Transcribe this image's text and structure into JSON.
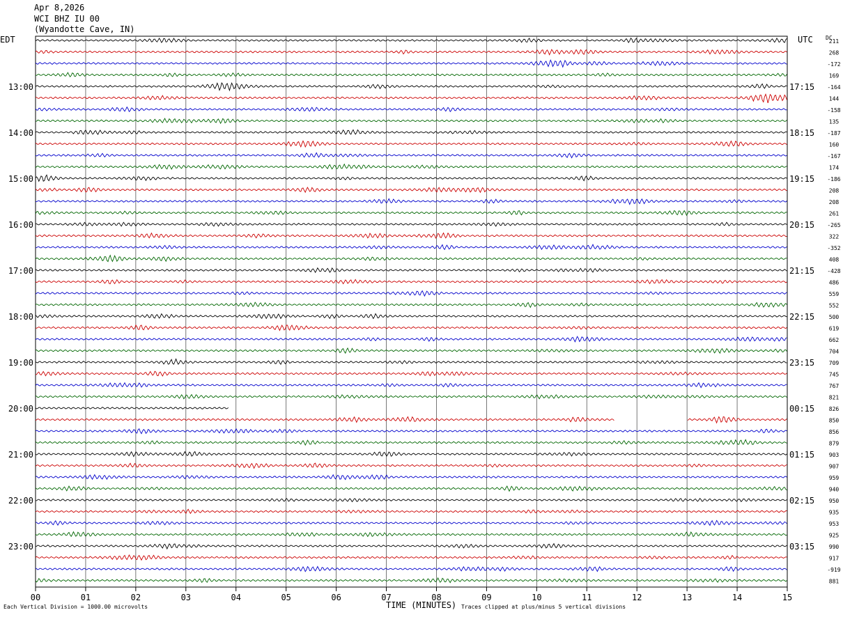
{
  "header": {
    "date": "Apr 8,2026",
    "station": "WCI BHZ IU 00",
    "location": "(Wyandotte Cave, IN)"
  },
  "tz_left": "EDT",
  "tz_right": "UTC",
  "dc_label": "DC",
  "footer": {
    "scale_note": "Each Vertical Division = 1000.00 microvolts",
    "xlabel": "TIME (MINUTES)",
    "clip_note": "Traces clipped at plus/minus 5 vertical divisions"
  },
  "colors": {
    "trace_cycle": [
      "#000000",
      "#cc0000",
      "#0000cc",
      "#006600"
    ],
    "grid": "#000000"
  },
  "chart_data": {
    "type": "line",
    "title": "",
    "xlabel": "TIME (MINUTES)",
    "ylabel": "",
    "xlim": [
      0,
      15
    ],
    "x_ticks": [
      "00",
      "01",
      "02",
      "03",
      "04",
      "05",
      "06",
      "07",
      "08",
      "09",
      "10",
      "11",
      "12",
      "13",
      "14",
      "15"
    ],
    "rows_per_hour": 4,
    "num_rows": 48,
    "left_hour_labels": [
      "13:00",
      "14:00",
      "15:00",
      "16:00",
      "17:00",
      "18:00",
      "19:00",
      "20:00",
      "21:00",
      "22:00",
      "23:00"
    ],
    "right_hour_labels": [
      "17:15",
      "18:15",
      "19:15",
      "20:15",
      "21:15",
      "22:15",
      "23:15",
      "00:15",
      "01:15",
      "02:15",
      "03:15"
    ],
    "hour_label_start_row": 4,
    "dc_offsets": [
      211,
      268,
      -172,
      169,
      -164,
      144,
      -158,
      135,
      -187,
      160,
      -167,
      174,
      -186,
      208,
      208,
      261,
      -265,
      322,
      -352,
      408,
      -428,
      486,
      559,
      552,
      500,
      619,
      662,
      704,
      709,
      745,
      767,
      821,
      826,
      850,
      856,
      879,
      903,
      907,
      959,
      940,
      950,
      935,
      953,
      925,
      990,
      917,
      -919,
      881
    ],
    "gaps": [
      {
        "row": 32,
        "x_start": 3.85,
        "x_end": 15
      },
      {
        "row": 33,
        "x_start": 11.55,
        "x_end": 13.0
      },
      {
        "row": 33,
        "x_start": 0,
        "x_end": 0
      }
    ],
    "series": [
      {
        "name": "seismogram",
        "note_values": "continuous waveform per row"
      }
    ]
  }
}
